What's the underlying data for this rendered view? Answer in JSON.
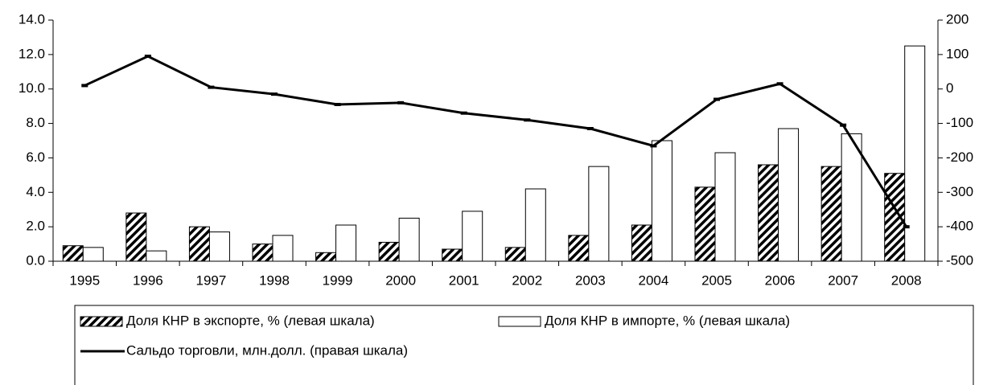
{
  "chart_data": {
    "type": "bar-line",
    "categories": [
      "1995",
      "1996",
      "1997",
      "1998",
      "1999",
      "2000",
      "2001",
      "2002",
      "2003",
      "2004",
      "2005",
      "2006",
      "2007",
      "2008"
    ],
    "series": [
      {
        "name": "Доля КНР в экспорте, % (левая шкала)",
        "type": "bar",
        "fill": "hatch",
        "color": "#000000",
        "values": [
          0.9,
          2.8,
          2.0,
          1.0,
          0.5,
          1.1,
          0.7,
          0.8,
          1.5,
          2.1,
          4.3,
          5.6,
          5.5,
          5.1
        ]
      },
      {
        "name": "Доля КНР в импорте, % (левая шкала)",
        "type": "bar",
        "fill": "#ffffff",
        "color": "#000000",
        "values": [
          0.8,
          0.6,
          1.7,
          1.5,
          2.1,
          2.5,
          2.9,
          4.2,
          5.5,
          7.0,
          6.3,
          7.7,
          7.4,
          12.5
        ]
      },
      {
        "name": "Сальдо торговли, млн.долл. (правая шкала)",
        "type": "line",
        "axis": "y2",
        "color": "#000000",
        "values": [
          10,
          95,
          5,
          -15,
          -45,
          -40,
          -70,
          -90,
          -115,
          -165,
          -30,
          15,
          -105,
          -400
        ]
      }
    ],
    "ylim": [
      0,
      14
    ],
    "yticks": [
      {
        "value": 0,
        "label": "0.0"
      },
      {
        "value": 2,
        "label": "2.0"
      },
      {
        "value": 4,
        "label": "4.0"
      },
      {
        "value": 6,
        "label": "6.0"
      },
      {
        "value": 8,
        "label": "8.0"
      },
      {
        "value": 10,
        "label": "10.0"
      },
      {
        "value": 12,
        "label": "12.0"
      },
      {
        "value": 14,
        "label": "14.0"
      }
    ],
    "y2lim": [
      -500,
      200
    ],
    "y2ticks": [
      -500,
      -400,
      -300,
      -200,
      -100,
      0,
      100,
      200
    ],
    "legend": "bottom"
  }
}
